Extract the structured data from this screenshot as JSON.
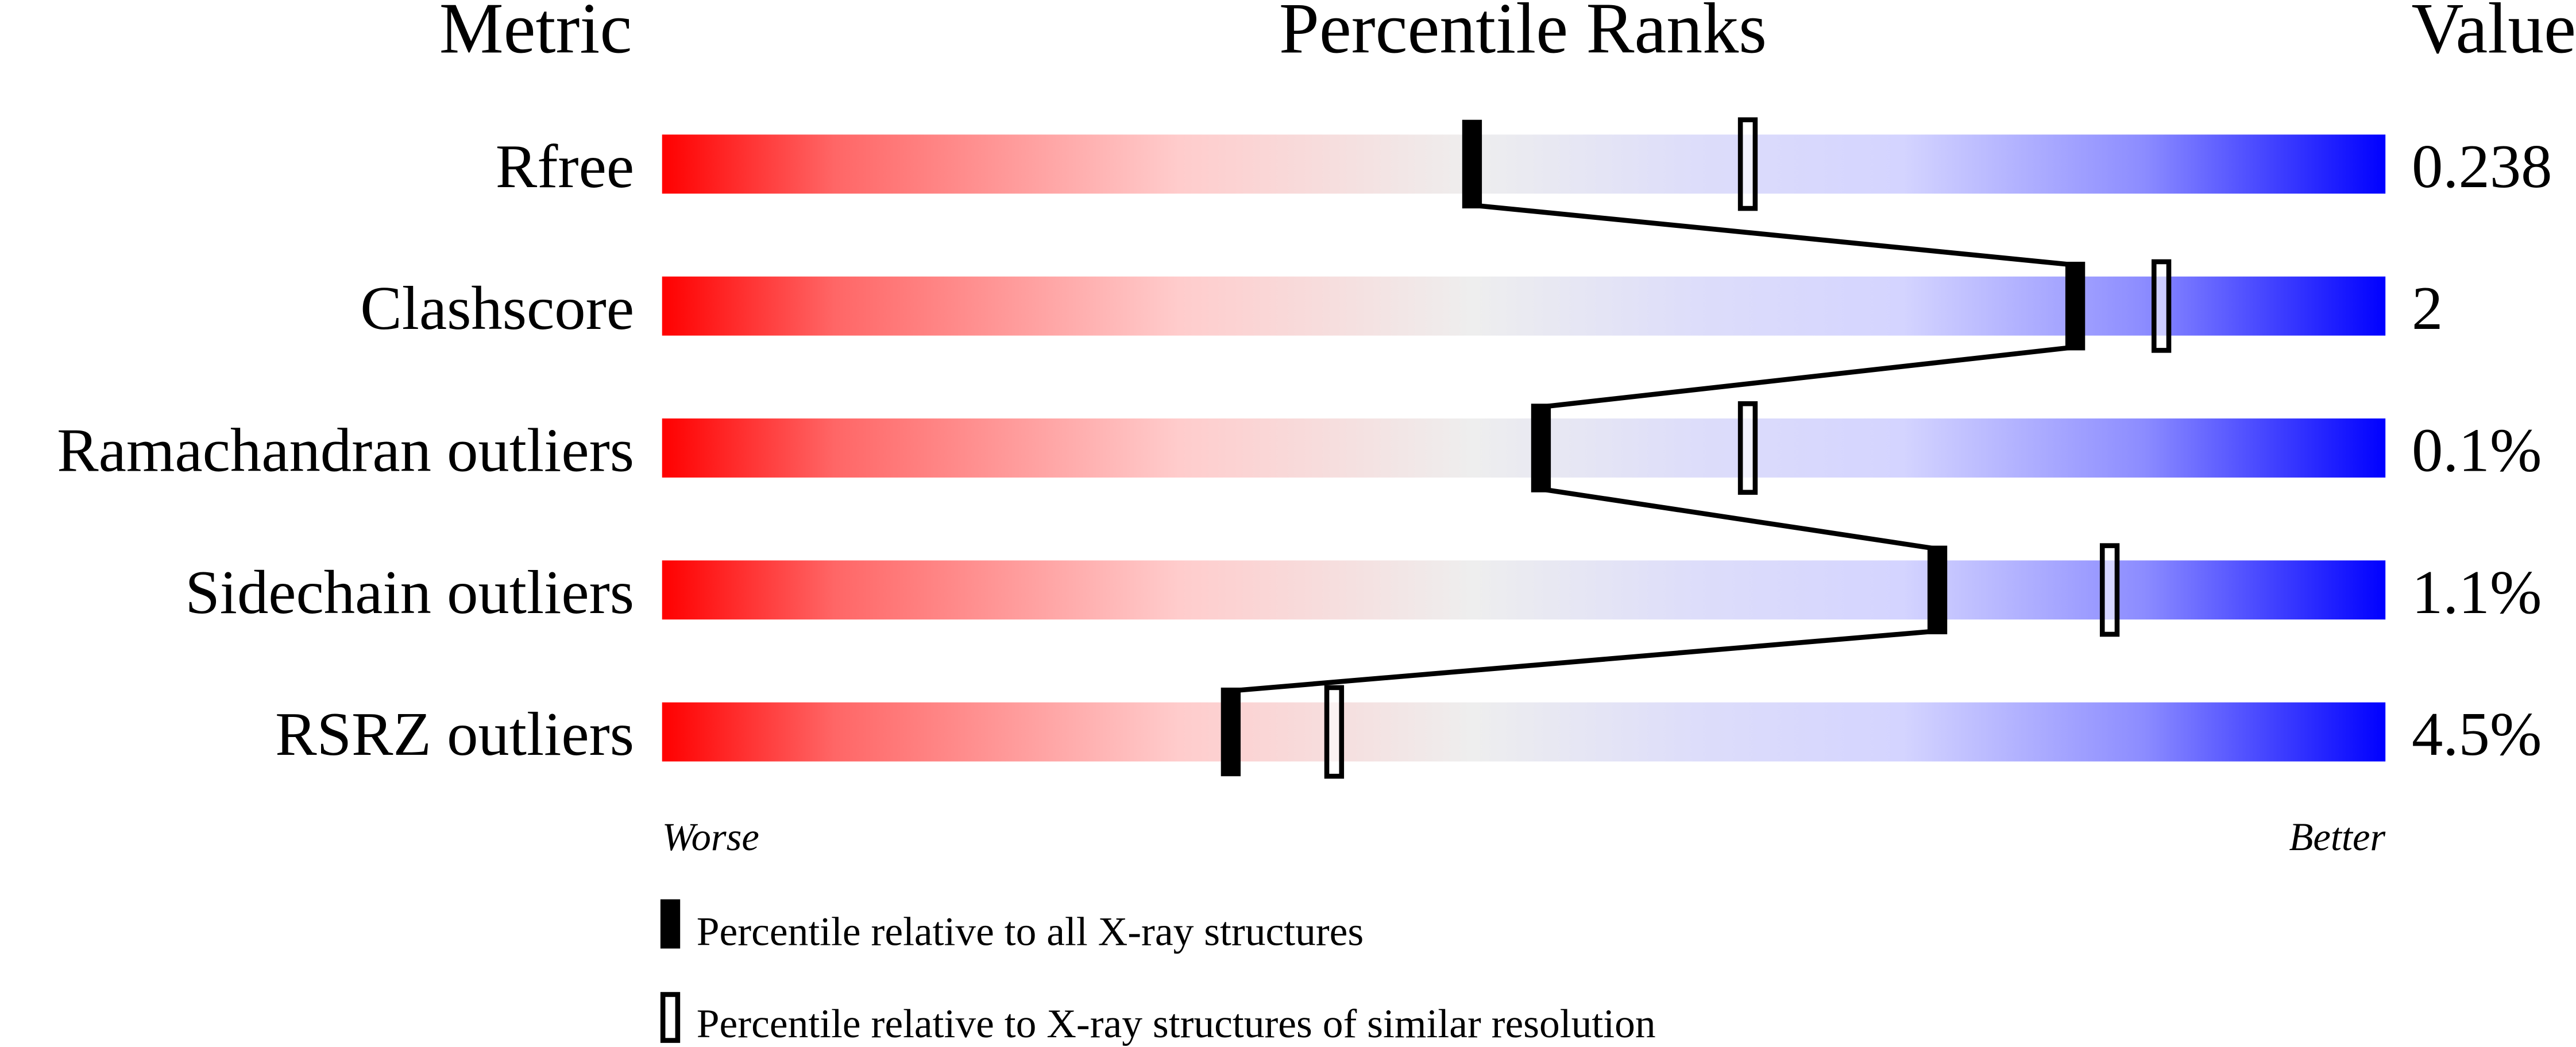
{
  "chart_data": {
    "type": "percentile-rank",
    "headers": {
      "metric": "Metric",
      "ranks": "Percentile Ranks",
      "value": "Value"
    },
    "xlim": [
      0,
      100
    ],
    "axis_labels": {
      "left": "Worse",
      "right": "Better"
    },
    "rows": [
      {
        "metric": "Rfree",
        "value": "0.238",
        "percentile_all": 47,
        "percentile_similar": 63
      },
      {
        "metric": "Clashscore",
        "value": "2",
        "percentile_all": 82,
        "percentile_similar": 87
      },
      {
        "metric": "Ramachandran outliers",
        "value": "0.1%",
        "percentile_all": 51,
        "percentile_similar": 63
      },
      {
        "metric": "Sidechain outliers",
        "value": "1.1%",
        "percentile_all": 74,
        "percentile_similar": 84
      },
      {
        "metric": "RSRZ outliers",
        "value": "4.5%",
        "percentile_all": 33,
        "percentile_similar": 39
      }
    ],
    "legend": [
      {
        "marker": "filled",
        "label": "Percentile relative to all X-ray structures"
      },
      {
        "marker": "hollow",
        "label": "Percentile relative to X-ray structures of similar resolution"
      }
    ],
    "colors": {
      "worse": "#ff0000",
      "middle": "#eeeeee",
      "better": "#0000ff",
      "marker": "#000000"
    }
  }
}
